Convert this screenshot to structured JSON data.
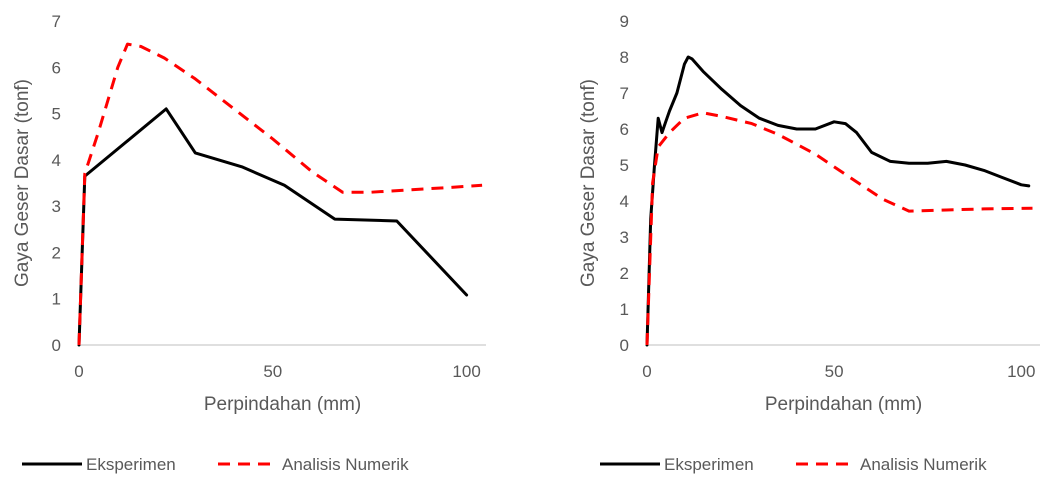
{
  "chart_data": [
    {
      "type": "line",
      "title": "",
      "xlabel": "Perpindahan (mm)",
      "ylabel": "Gaya Geser Dasar (tonf)",
      "xlim": [
        0,
        105
      ],
      "ylim": [
        0,
        7
      ],
      "xticks": [
        0,
        50,
        100
      ],
      "yticks": [
        0,
        1,
        2,
        3,
        4,
        5,
        6,
        7
      ],
      "grid": false,
      "legend_position": "bottom",
      "series": [
        {
          "name": "Eksperimen",
          "style": "solid",
          "color": "#000000",
          "x": [
            0,
            1.5,
            22.5,
            30,
            42,
            53,
            66,
            82,
            100
          ],
          "y": [
            0,
            3.65,
            5.1,
            4.15,
            3.85,
            3.45,
            2.72,
            2.68,
            1.08
          ]
        },
        {
          "name": "Analisis Numerik",
          "style": "dashed",
          "color": "#ff0000",
          "x": [
            0,
            1.5,
            5,
            10,
            12.5,
            16,
            22,
            30,
            40,
            50,
            60,
            68,
            75,
            85,
            95,
            104
          ],
          "y": [
            0,
            3.7,
            4.6,
            6.0,
            6.5,
            6.45,
            6.2,
            5.75,
            5.1,
            4.45,
            3.75,
            3.3,
            3.3,
            3.35,
            3.4,
            3.45
          ]
        }
      ]
    },
    {
      "type": "line",
      "title": "",
      "xlabel": "Perpindahan (mm)",
      "ylabel": "Gaya Geser Dasar (tonf)",
      "xlim": [
        0,
        105
      ],
      "ylim": [
        0,
        9
      ],
      "xticks": [
        0,
        50,
        100
      ],
      "yticks": [
        0,
        1,
        2,
        3,
        4,
        5,
        6,
        7,
        8,
        9
      ],
      "grid": false,
      "legend_position": "bottom",
      "series": [
        {
          "name": "Eksperimen",
          "style": "solid",
          "color": "#000000",
          "x": [
            0,
            1,
            2,
            3,
            4,
            5,
            6,
            8,
            10,
            11,
            12,
            15,
            20,
            25,
            30,
            35,
            40,
            45,
            50,
            53,
            56,
            60,
            65,
            70,
            75,
            80,
            85,
            90,
            95,
            100,
            102
          ],
          "y": [
            0,
            3.5,
            5.0,
            6.3,
            5.9,
            6.2,
            6.5,
            7.0,
            7.8,
            8.0,
            7.95,
            7.6,
            7.1,
            6.65,
            6.3,
            6.1,
            6.0,
            6.0,
            6.2,
            6.15,
            5.9,
            5.35,
            5.1,
            5.05,
            5.05,
            5.1,
            5.0,
            4.85,
            4.65,
            4.45,
            4.42
          ]
        },
        {
          "name": "Analisis Numerik",
          "style": "dashed",
          "color": "#ff0000",
          "x": [
            0,
            1.5,
            3,
            6,
            10,
            15,
            20,
            28,
            35,
            45,
            55,
            63,
            70,
            80,
            90,
            103
          ],
          "y": [
            0,
            4.5,
            5.5,
            5.9,
            6.3,
            6.45,
            6.35,
            6.15,
            5.85,
            5.3,
            4.6,
            4.05,
            3.72,
            3.75,
            3.78,
            3.8
          ]
        }
      ]
    }
  ]
}
